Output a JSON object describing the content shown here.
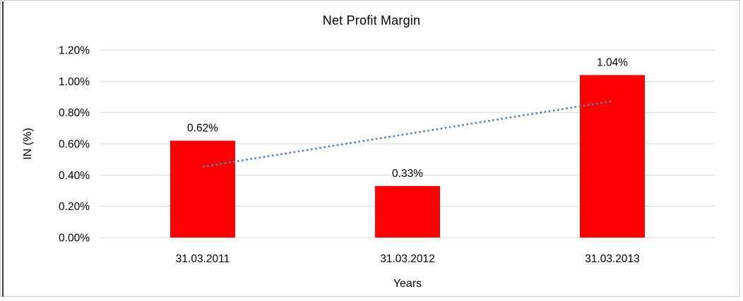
{
  "chart_data": {
    "type": "bar",
    "title": "Net Profit Margin",
    "xlabel": "Years",
    "ylabel": "IN (%)",
    "categories": [
      "31.03.2011",
      "31.03.2012",
      "31.03.2013"
    ],
    "values": [
      0.62,
      0.33,
      1.04
    ],
    "data_labels": [
      "0.62%",
      "0.33%",
      "1.04%"
    ],
    "ytick_values": [
      0.0,
      0.2,
      0.4,
      0.6,
      0.8,
      1.0,
      1.2
    ],
    "ytick_labels": [
      "0.00%",
      "0.20%",
      "0.40%",
      "0.60%",
      "0.80%",
      "1.00%",
      "1.20%"
    ],
    "ylim": [
      0,
      1.2
    ],
    "grid": true,
    "legend": "none",
    "bar_color": "#ff0000",
    "gridline_color": "#d9d9d9",
    "trendline": {
      "type": "linear",
      "style": "dotted",
      "color": "#4f81bd",
      "start_value": 0.4533,
      "end_value": 0.8733
    }
  }
}
